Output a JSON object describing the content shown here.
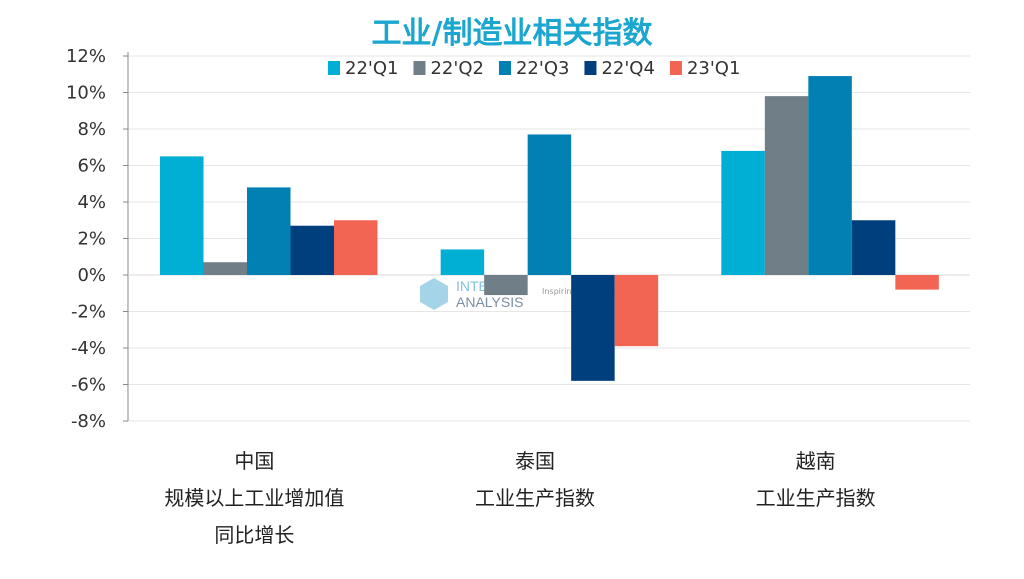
{
  "chart_data": {
    "type": "bar",
    "title": "工业/制造业相关指数",
    "categories": [
      [
        "中国",
        "规模以上工业增加值",
        "同比增长"
      ],
      [
        "泰国",
        "工业生产指数"
      ],
      [
        "越南",
        "工业生产指数"
      ]
    ],
    "series": [
      {
        "name": "22'Q1",
        "color": "#00afd3",
        "values": [
          6.5,
          1.4,
          6.8
        ]
      },
      {
        "name": "22'Q2",
        "color": "#6f7e87",
        "values": [
          0.7,
          -1.1,
          9.8
        ]
      },
      {
        "name": "22'Q3",
        "color": "#0080b3",
        "values": [
          4.8,
          7.7,
          10.9
        ]
      },
      {
        "name": "22'Q4",
        "color": "#003f7e",
        "values": [
          2.7,
          -5.8,
          3.0
        ]
      },
      {
        "name": "23'Q1",
        "color": "#f26552",
        "values": [
          3.0,
          -3.9,
          -0.8
        ]
      }
    ],
    "yticks": [
      "12%",
      "10%",
      "8%",
      "6%",
      "4%",
      "2%",
      "0%",
      "-2%",
      "-4%",
      "-6%",
      "-8%"
    ],
    "ytick_values": [
      12,
      10,
      8,
      6,
      4,
      2,
      0,
      -2,
      -4,
      -6,
      -8
    ],
    "ylim": [
      -8,
      12
    ],
    "xlabel": "",
    "ylabel": "",
    "grid": true,
    "legend": "top-center"
  },
  "watermark": {
    "name": "INTERACT ANALYSIS",
    "tagline": "Inspiring intelligence"
  }
}
